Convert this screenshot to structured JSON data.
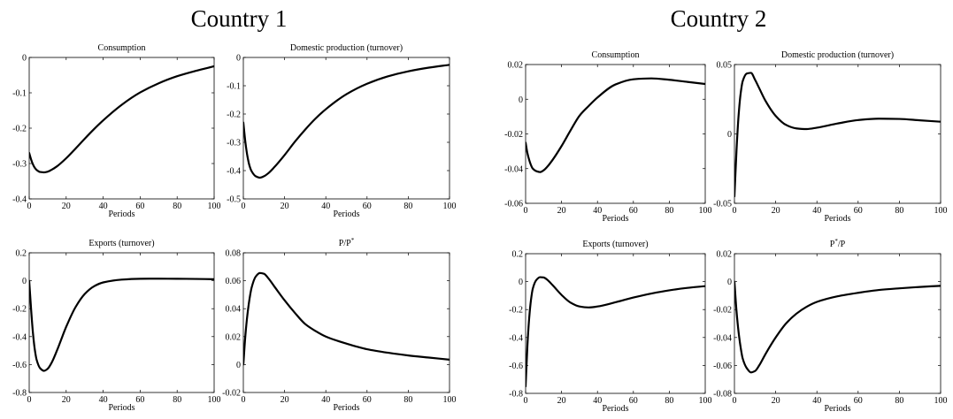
{
  "groups": [
    {
      "title": "Country 1"
    },
    {
      "title": "Country 2"
    }
  ],
  "chart_data": [
    {
      "type": "line",
      "title_parts": [
        {
          "text": "Consumption"
        }
      ],
      "xlabel": "Periods",
      "xlim": [
        0,
        100
      ],
      "ylim": [
        -0.4,
        0
      ],
      "xticks": [
        0,
        20,
        40,
        60,
        80,
        100
      ],
      "yticks": [
        -0.4,
        -0.3,
        -0.2,
        -0.1,
        0
      ],
      "grid": false,
      "x": [
        0,
        1,
        2,
        3,
        4,
        6,
        8,
        10,
        12,
        15,
        20,
        25,
        30,
        35,
        40,
        50,
        60,
        70,
        80,
        90,
        100
      ],
      "series": [
        {
          "values": [
            -0.27,
            -0.288,
            -0.302,
            -0.312,
            -0.318,
            -0.324,
            -0.325,
            -0.323,
            -0.318,
            -0.308,
            -0.285,
            -0.258,
            -0.23,
            -0.203,
            -0.178,
            -0.134,
            -0.099,
            -0.073,
            -0.053,
            -0.038,
            -0.025
          ]
        }
      ]
    },
    {
      "type": "line",
      "title_parts": [
        {
          "text": "Domestic production (turnover)"
        }
      ],
      "xlabel": "Periods",
      "xlim": [
        0,
        100
      ],
      "ylim": [
        -0.5,
        0
      ],
      "xticks": [
        0,
        20,
        40,
        60,
        80,
        100
      ],
      "yticks": [
        -0.5,
        -0.4,
        -0.3,
        -0.2,
        -0.1,
        0
      ],
      "grid": false,
      "x": [
        0,
        1,
        2,
        3,
        4,
        6,
        8,
        10,
        12,
        15,
        20,
        25,
        30,
        35,
        40,
        50,
        60,
        70,
        80,
        90,
        100
      ],
      "series": [
        {
          "values": [
            -0.23,
            -0.3,
            -0.35,
            -0.383,
            -0.402,
            -0.42,
            -0.425,
            -0.42,
            -0.41,
            -0.388,
            -0.345,
            -0.298,
            -0.255,
            -0.216,
            -0.183,
            -0.13,
            -0.093,
            -0.067,
            -0.049,
            -0.036,
            -0.026
          ]
        }
      ]
    },
    {
      "type": "line",
      "title_parts": [
        {
          "text": "Exports (turnover)"
        }
      ],
      "xlabel": "Periods",
      "xlim": [
        0,
        100
      ],
      "ylim": [
        -0.8,
        0.2
      ],
      "xticks": [
        0,
        20,
        40,
        60,
        80,
        100
      ],
      "yticks": [
        -0.8,
        -0.6,
        -0.4,
        -0.2,
        0,
        0.2
      ],
      "grid": false,
      "x": [
        0,
        1,
        2,
        3,
        4,
        6,
        8,
        10,
        12,
        15,
        20,
        25,
        30,
        35,
        40,
        50,
        60,
        70,
        80,
        90,
        100
      ],
      "series": [
        {
          "values": [
            0.0,
            -0.2,
            -0.37,
            -0.49,
            -0.565,
            -0.628,
            -0.645,
            -0.63,
            -0.59,
            -0.5,
            -0.33,
            -0.19,
            -0.095,
            -0.04,
            -0.012,
            0.008,
            0.014,
            0.015,
            0.014,
            0.013,
            0.011
          ]
        }
      ]
    },
    {
      "type": "line",
      "title_parts": [
        {
          "text": "P/P"
        },
        {
          "text": "*",
          "sup": true
        }
      ],
      "xlabel": "Periods",
      "xlim": [
        0,
        100
      ],
      "ylim": [
        -0.02,
        0.08
      ],
      "xticks": [
        0,
        20,
        40,
        60,
        80,
        100
      ],
      "yticks": [
        -0.02,
        0,
        0.02,
        0.04,
        0.06,
        0.08
      ],
      "grid": false,
      "x": [
        0,
        1,
        2,
        3,
        4,
        6,
        8,
        10,
        12,
        15,
        20,
        25,
        30,
        35,
        40,
        50,
        60,
        70,
        80,
        90,
        100
      ],
      "series": [
        {
          "values": [
            0.0,
            0.021,
            0.036,
            0.047,
            0.055,
            0.063,
            0.0655,
            0.065,
            0.062,
            0.056,
            0.046,
            0.037,
            0.029,
            0.024,
            0.02,
            0.015,
            0.011,
            0.0085,
            0.0065,
            0.005,
            0.0035
          ]
        }
      ]
    },
    {
      "type": "line",
      "title_parts": [
        {
          "text": "Consumption"
        }
      ],
      "xlabel": "Periods",
      "xlim": [
        0,
        100
      ],
      "ylim": [
        -0.06,
        0.02
      ],
      "xticks": [
        0,
        20,
        40,
        60,
        80,
        100
      ],
      "yticks": [
        -0.06,
        -0.04,
        -0.02,
        0,
        0.02
      ],
      "grid": false,
      "x": [
        0,
        1,
        2,
        3,
        4,
        6,
        8,
        10,
        12,
        15,
        20,
        25,
        30,
        35,
        40,
        50,
        60,
        70,
        80,
        90,
        100
      ],
      "series": [
        {
          "values": [
            -0.025,
            -0.031,
            -0.035,
            -0.038,
            -0.04,
            -0.0415,
            -0.042,
            -0.041,
            -0.039,
            -0.035,
            -0.027,
            -0.018,
            -0.0095,
            -0.004,
            0.001,
            0.0085,
            0.0115,
            0.012,
            0.0112,
            0.01,
            0.0088
          ]
        }
      ]
    },
    {
      "type": "line",
      "title_parts": [
        {
          "text": "Domestic production (turnover)"
        }
      ],
      "xlabel": "Periods",
      "xlim": [
        0,
        100
      ],
      "ylim": [
        -0.05,
        0.05
      ],
      "xticks": [
        0,
        20,
        40,
        60,
        80,
        100
      ],
      "yticks": [
        -0.05,
        0,
        0.05
      ],
      "grid": false,
      "x": [
        0,
        1,
        2,
        3,
        4,
        6,
        8,
        10,
        12,
        15,
        20,
        25,
        30,
        35,
        40,
        50,
        60,
        70,
        80,
        90,
        100
      ],
      "series": [
        {
          "values": [
            -0.045,
            -0.012,
            0.013,
            0.029,
            0.038,
            0.0435,
            0.044,
            0.039,
            0.033,
            0.024,
            0.013,
            0.0065,
            0.004,
            0.0035,
            0.0045,
            0.0075,
            0.01,
            0.011,
            0.0108,
            0.0098,
            0.0088
          ]
        }
      ]
    },
    {
      "type": "line",
      "title_parts": [
        {
          "text": "Exports (turnover)"
        }
      ],
      "xlabel": "Periods",
      "xlim": [
        0,
        100
      ],
      "ylim": [
        -0.8,
        0.2
      ],
      "xticks": [
        0,
        20,
        40,
        60,
        80,
        100
      ],
      "yticks": [
        -0.8,
        -0.6,
        -0.4,
        -0.2,
        0,
        0.2
      ],
      "grid": false,
      "x": [
        0,
        1,
        2,
        3,
        4,
        6,
        8,
        10,
        12,
        15,
        20,
        25,
        30,
        35,
        40,
        50,
        60,
        70,
        80,
        90,
        100
      ],
      "series": [
        {
          "values": [
            -0.75,
            -0.46,
            -0.26,
            -0.13,
            -0.05,
            0.012,
            0.032,
            0.03,
            0.014,
            -0.025,
            -0.095,
            -0.15,
            -0.178,
            -0.185,
            -0.178,
            -0.148,
            -0.114,
            -0.085,
            -0.062,
            -0.045,
            -0.032
          ]
        }
      ]
    },
    {
      "type": "line",
      "title_parts": [
        {
          "text": "P"
        },
        {
          "text": "*",
          "sup": true
        },
        {
          "text": "/P"
        }
      ],
      "xlabel": "Periods",
      "xlim": [
        0,
        100
      ],
      "ylim": [
        -0.08,
        0.02
      ],
      "xticks": [
        0,
        20,
        40,
        60,
        80,
        100
      ],
      "yticks": [
        -0.08,
        -0.06,
        -0.04,
        -0.02,
        0,
        0.02
      ],
      "grid": false,
      "x": [
        0,
        1,
        2,
        3,
        4,
        6,
        8,
        10,
        12,
        15,
        20,
        25,
        30,
        35,
        40,
        50,
        60,
        70,
        80,
        90,
        100
      ],
      "series": [
        {
          "values": [
            0.0,
            -0.021,
            -0.036,
            -0.047,
            -0.055,
            -0.062,
            -0.065,
            -0.064,
            -0.06,
            -0.052,
            -0.04,
            -0.03,
            -0.023,
            -0.018,
            -0.0145,
            -0.0105,
            -0.008,
            -0.006,
            -0.0048,
            -0.0038,
            -0.003
          ]
        }
      ]
    }
  ]
}
